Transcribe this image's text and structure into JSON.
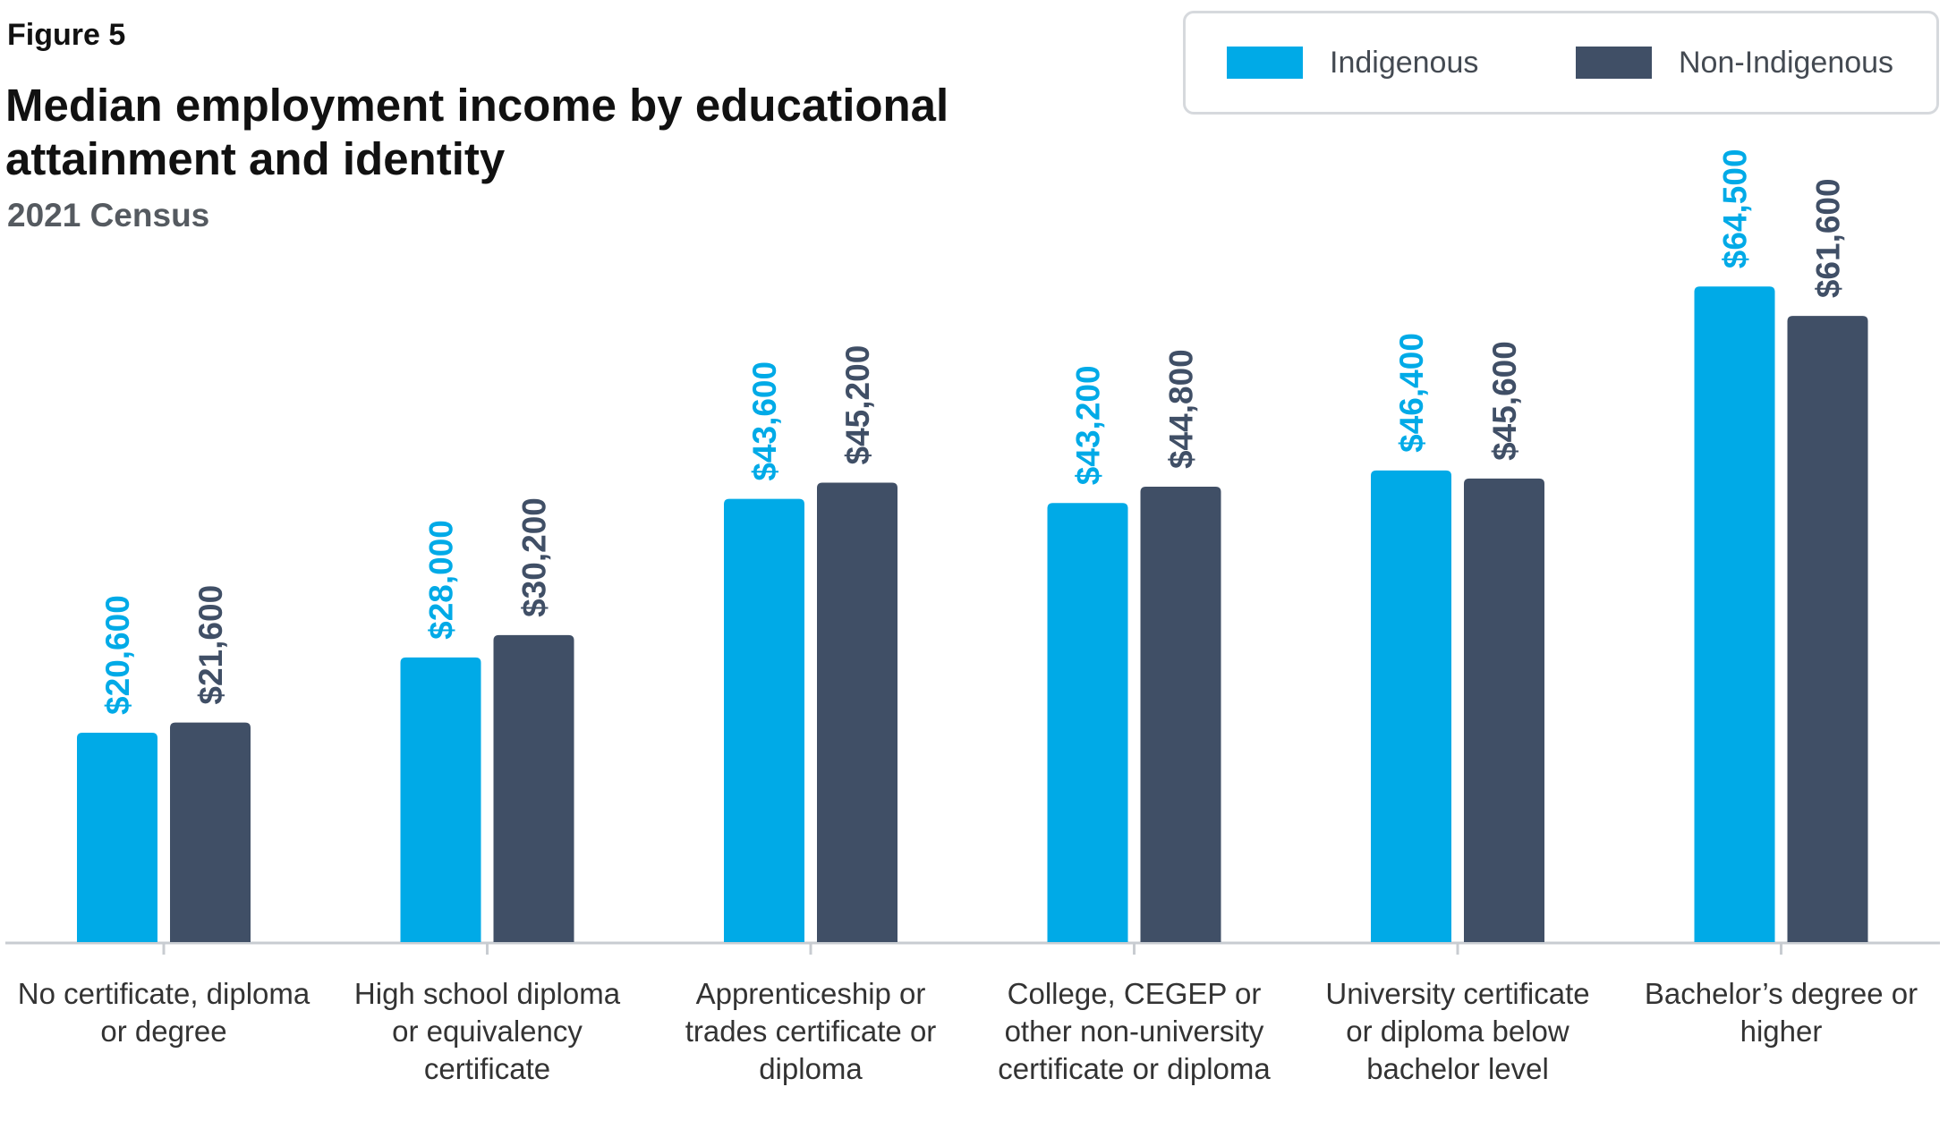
{
  "figure_label": "Figure 5",
  "colors": {
    "indigenous": "#00aae7",
    "non_indigenous": "#404f66",
    "axis": "#c8ccd1"
  },
  "chart_data": {
    "type": "bar",
    "title": "Median employment income by educational attainment and identity",
    "subtitle": "2021 Census",
    "xlabel": "",
    "ylabel": "",
    "ylim": [
      0,
      72000
    ],
    "grid": false,
    "legend_position": "top-right",
    "categories": [
      "No certificate, diploma or degree",
      "High school diploma or equivalency certificate",
      "Apprenticeship or trades certificate or diploma",
      "College, CEGEP or other non-university certificate or diploma",
      "University certificate or diploma below bachelor level",
      "Bachelor’s degree or higher"
    ],
    "series": [
      {
        "name": "Indigenous",
        "values": [
          20600,
          28000,
          43600,
          43200,
          46400,
          64500
        ],
        "labels": [
          "$20,600",
          "$28,000",
          "$43,600",
          "$43,200",
          "$46,400",
          "$64,500"
        ]
      },
      {
        "name": "Non-Indigenous",
        "values": [
          21600,
          30200,
          45200,
          44800,
          45600,
          61600
        ],
        "labels": [
          "$21,600",
          "$30,200",
          "$45,200",
          "$44,800",
          "$45,600",
          "$61,600"
        ]
      }
    ]
  }
}
